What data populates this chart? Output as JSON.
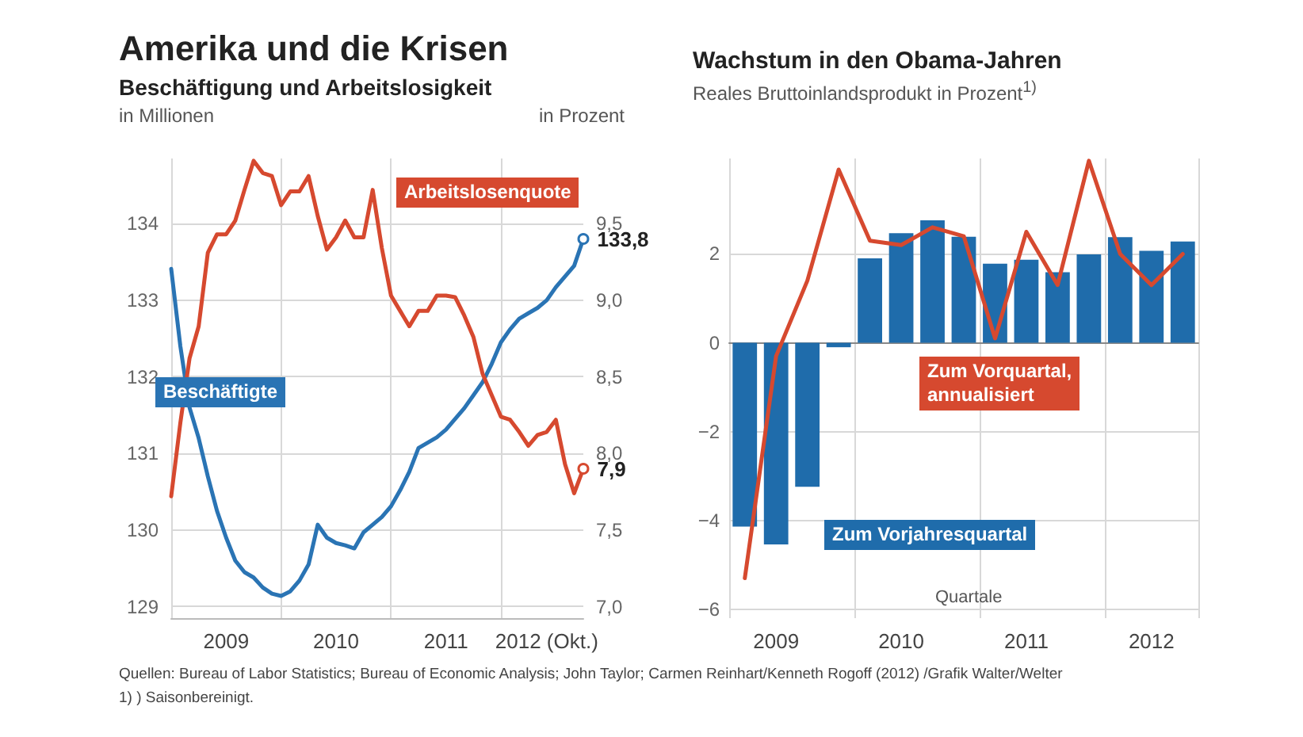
{
  "chart_data": [
    {
      "type": "line",
      "title": "Amerika und die Krisen",
      "subtitle": "Beschäftigung und Arbeitslosigkeit",
      "ylabel": "in Millionen",
      "y2label": "in Prozent",
      "categories": [
        null,
        null,
        null,
        null,
        null,
        null,
        "2009",
        null,
        null,
        null,
        null,
        null,
        null,
        null,
        null,
        null,
        null,
        null,
        "2010",
        null,
        null,
        null,
        null,
        null,
        null,
        null,
        null,
        null,
        null,
        null,
        "2011",
        null,
        null,
        null,
        null,
        null,
        null,
        null,
        null,
        null,
        null,
        "2012 (Okt.)",
        null,
        null,
        null,
        null
      ],
      "series": [
        {
          "name": "Beschäftigte",
          "color": "#2a74b4",
          "values": [
            133.41,
            132.4,
            131.6,
            131.2,
            130.7,
            130.25,
            129.9,
            129.6,
            129.45,
            129.38,
            129.25,
            129.17,
            129.14,
            129.2,
            129.34,
            129.55,
            130.07,
            129.9,
            129.83,
            129.8,
            129.76,
            129.97,
            130.07,
            130.17,
            130.31,
            130.52,
            130.76,
            131.07,
            131.14,
            131.21,
            131.31,
            131.45,
            131.59,
            131.76,
            131.93,
            132.17,
            132.45,
            132.62,
            132.76,
            132.83,
            132.9,
            133.0,
            133.17,
            133.31,
            133.45,
            133.8
          ],
          "value_labels": [
            null,
            null,
            null,
            null,
            null,
            null,
            null,
            null,
            null,
            null,
            null,
            null,
            null,
            null,
            null,
            null,
            null,
            null,
            null,
            null,
            null,
            null,
            null,
            null,
            null,
            null,
            null,
            null,
            null,
            null,
            null,
            null,
            null,
            null,
            null,
            null,
            null,
            null,
            null,
            null,
            null,
            null,
            null,
            null,
            null,
            "133,8"
          ]
        },
        {
          "name": "Arbeitslosenquote",
          "color": "#d6492f",
          "axis": "y2",
          "values": [
            7.72,
            8.2,
            8.62,
            8.83,
            9.31,
            9.43,
            9.43,
            9.52,
            9.72,
            9.91,
            9.83,
            9.81,
            9.62,
            9.71,
            9.71,
            9.81,
            9.55,
            9.33,
            9.41,
            9.52,
            9.41,
            9.41,
            9.72,
            9.34,
            9.03,
            8.93,
            8.83,
            8.93,
            8.93,
            9.03,
            9.03,
            9.02,
            8.9,
            8.76,
            8.52,
            8.38,
            8.24,
            8.22,
            8.14,
            8.05,
            8.12,
            8.14,
            8.22,
            7.93,
            7.74,
            7.9
          ],
          "value_labels": [
            null,
            null,
            null,
            null,
            null,
            null,
            null,
            null,
            null,
            null,
            null,
            null,
            null,
            null,
            null,
            null,
            null,
            null,
            null,
            null,
            null,
            null,
            null,
            null,
            null,
            null,
            null,
            null,
            null,
            null,
            null,
            null,
            null,
            null,
            null,
            null,
            null,
            null,
            null,
            null,
            null,
            null,
            null,
            null,
            null,
            "7,9"
          ]
        }
      ],
      "ylim": [
        128.85,
        134.85
      ],
      "yticks": [
        129,
        130,
        131,
        132,
        133,
        134
      ],
      "y2lim": [
        6.925,
        9.925
      ],
      "y2ticks": [
        {
          "value": 7.0,
          "label": "7,0"
        },
        {
          "value": 7.5,
          "label": "7,5"
        },
        {
          "value": 8.0,
          "label": "8,0"
        },
        {
          "value": 8.5,
          "label": "8,5"
        },
        {
          "value": 9.0,
          "label": "9,0"
        },
        {
          "value": 9.5,
          "label": "9,5"
        }
      ],
      "grid": true,
      "annotations": [
        "Quellen: Bureau of Labor Statistics; Bureau of Economic Analysis; John Taylor; Carmen Reinhart/Kenneth Rogoff (2012) /Grafik Walter/Welter",
        "1) ) Saisonbereinigt."
      ]
    },
    {
      "type": "bar",
      "title": "Wachstum in den Obama-Jahren",
      "subtitle": "Reales Bruttoinlandsprodukt in Prozent$^{1)}$",
      "xlabel": "Quartale",
      "categories": [
        null,
        "2009",
        null,
        null,
        null,
        "2010",
        null,
        null,
        null,
        "2011",
        null,
        null,
        null,
        "2012",
        null
      ],
      "series": [
        {
          "name": "Zum Vorjahresquartal",
          "type": "bar",
          "color": "#1f6cab",
          "values": [
            -4.14,
            -4.54,
            -3.24,
            -0.1,
            1.9,
            2.47,
            2.76,
            2.39,
            1.78,
            1.87,
            1.59,
            1.99,
            2.38,
            2.07,
            2.28
          ]
        },
        {
          "name": "Zum Vorquartal, annualisiert",
          "type": "line",
          "color": "#d6492f",
          "values": [
            -5.3,
            -0.3,
            1.4,
            3.9,
            2.3,
            2.2,
            2.6,
            2.4,
            0.1,
            2.5,
            1.3,
            4.1,
            2.0,
            1.3,
            2.0
          ]
        }
      ],
      "ylim": [
        -6.2,
        4.15
      ],
      "yticks": [
        {
          "value": -6,
          "label": "−6"
        },
        {
          "value": -4,
          "label": "−4"
        },
        {
          "value": -2,
          "label": "−2"
        },
        0,
        2
      ],
      "grid": true
    }
  ]
}
